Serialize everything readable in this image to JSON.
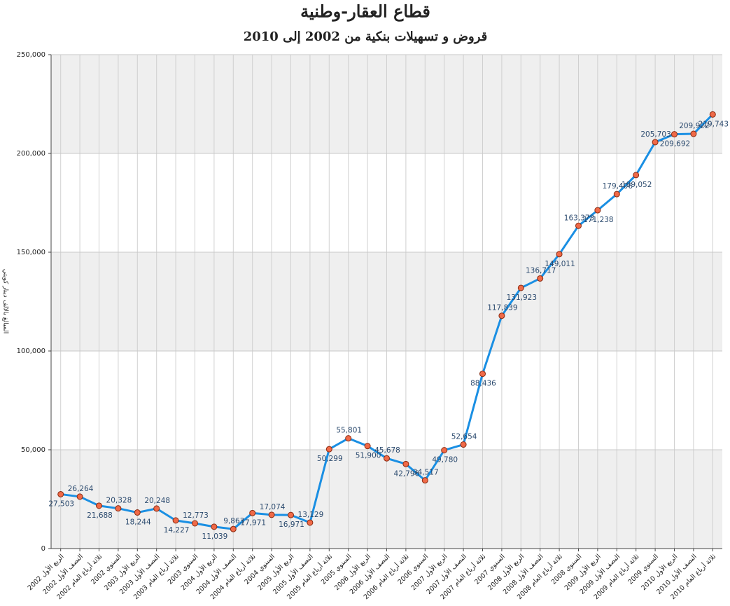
{
  "chart_data": {
    "type": "line",
    "title": "قطاع العقار-وطنية",
    "subtitle": "قروض و تسهيلات بنكية من 2002 إلى 2010",
    "y_label": "المبالغ بالالف دينار كويتي",
    "categories": [
      "الربع الأول 2002",
      "النصف الأول 2002",
      "ثلاثة أرباع العام 2002",
      "السنوي 2002",
      "الربع الأول 2003",
      "النصف الأول 2003",
      "ثلاثة أرباع العام 2003",
      "السنوي 2003",
      "الربع الأول 2004",
      "النصف الأول 2004",
      "ثلاثة أرباع العام 2004",
      "السنوي 2004",
      "الربع الأول 2005",
      "النصف الأول 2005",
      "ثلاثة أرباع العام 2005",
      "السنوي 2005",
      "الربع الأول 2006",
      "النصف الأول 2006",
      "ثلاثة أرباع العام 2006",
      "السنوي 2006",
      "الربع الأول 2007",
      "النصف الأول 2007",
      "ثلاثة أرباع العام 2007",
      "السنوي 2007",
      "الربع الأول 2008",
      "النصف الأول 2008",
      "ثلاثة أرباع العام 2008",
      "السنوي 2008",
      "الربع الأول 2009",
      "النصف الأول 2009",
      "ثلاثة أرباع العام 2009",
      "السنوي 2009",
      "الربع الأول 2010",
      "النصف الأول 2010",
      "ثلاثة أرباع العام 2010"
    ],
    "values": [
      27503,
      26264,
      21688,
      20328,
      18244,
      20248,
      14227,
      12773,
      11039,
      9863,
      17971,
      17074,
      16971,
      13129,
      50299,
      55801,
      51900,
      45678,
      42796,
      34517,
      49780,
      52654,
      88436,
      117839,
      131923,
      136717,
      149011,
      163373,
      171238,
      179406,
      189052,
      205703,
      209692,
      209922,
      219743
    ],
    "value_labels": [
      "27,503",
      "26,264",
      "21,688",
      "20,328",
      "18,244",
      "20,248",
      "14,227",
      "12,773",
      "11,039",
      "9,863",
      "17,971",
      "17,074",
      "16,971",
      "13,129",
      "50,299",
      "55,801",
      "51,900",
      "45,678",
      "42,796",
      "34,517",
      "49,780",
      "52,654",
      "88,436",
      "117,839",
      "131,923",
      "136,717",
      "149,011",
      "163,373",
      "171,238",
      "179,406",
      "189,052",
      "205,703",
      "209,692",
      "209,922",
      "219,743"
    ],
    "color": "#1a8fe3",
    "marker_color": "#f06a48",
    "ylim": [
      0,
      250000
    ],
    "yticks": [
      0,
      {
        "value": 50000,
        "label": "50,000"
      },
      {
        "value": 100000,
        "label": "100,000"
      },
      {
        "value": 150000,
        "label": "150,000"
      },
      {
        "value": 200000,
        "label": "200,000"
      },
      {
        "value": 250000,
        "label": "250,000"
      }
    ],
    "grid": true
  }
}
